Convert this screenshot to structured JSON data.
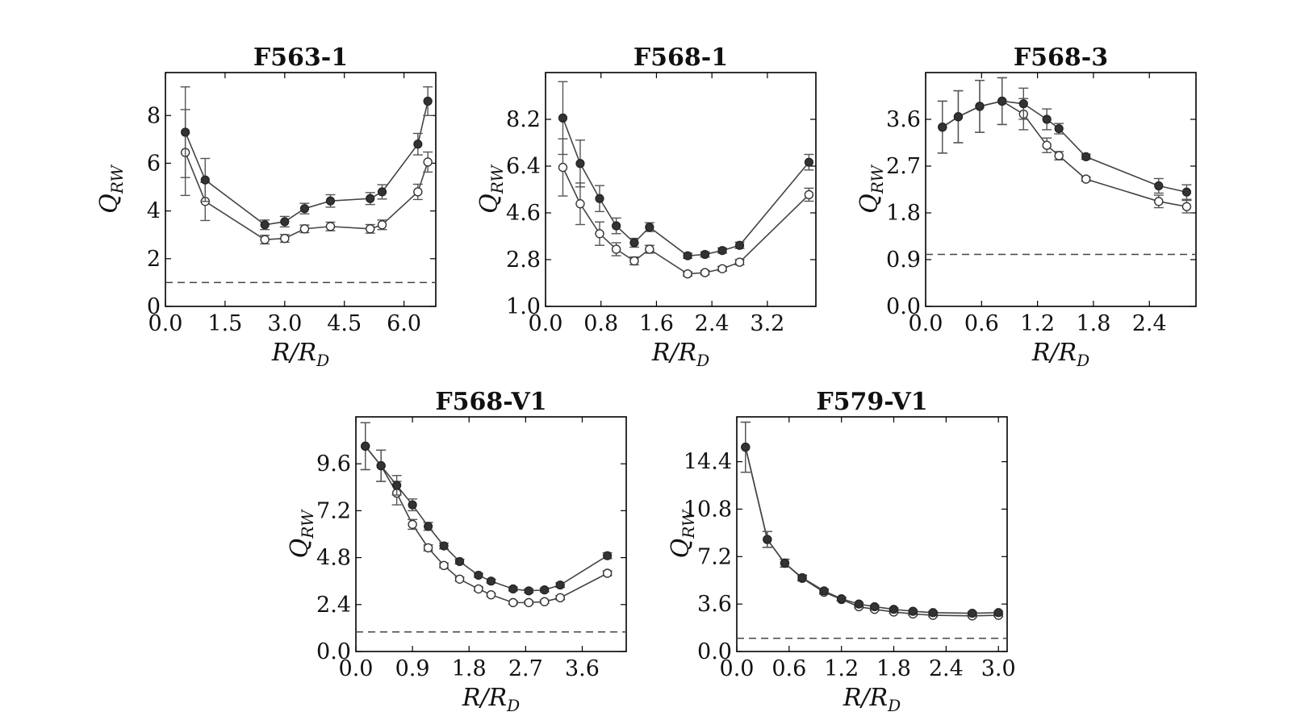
{
  "chart_data": [
    {
      "type": "scatter",
      "title": "F563-1",
      "xlabel": "R/R_D",
      "ylabel": "Q_RW",
      "xlim": [
        0,
        6.8
      ],
      "ylim": [
        0,
        9.8
      ],
      "xticks": [
        "0.0",
        "1.5",
        "3.0",
        "4.5",
        "6.0"
      ],
      "yticks": [
        "0",
        "2",
        "4",
        "6",
        "8"
      ],
      "ref_y": 1.0,
      "series": [
        {
          "name": "filled",
          "style": "filled",
          "x": [
            0.5,
            1.0,
            2.5,
            3.0,
            3.5,
            4.15,
            5.15,
            5.45,
            6.35,
            6.6
          ],
          "y": [
            7.3,
            5.3,
            3.42,
            3.55,
            4.1,
            4.42,
            4.52,
            4.8,
            6.8,
            8.6
          ],
          "err": [
            1.9,
            0.9,
            0.2,
            0.22,
            0.22,
            0.26,
            0.25,
            0.3,
            0.45,
            0.6
          ]
        },
        {
          "name": "open",
          "style": "open",
          "x": [
            0.5,
            1.0,
            2.5,
            3.0,
            3.5,
            4.15,
            5.15,
            5.45,
            6.35,
            6.6
          ],
          "y": [
            6.45,
            4.4,
            2.8,
            2.85,
            3.25,
            3.35,
            3.25,
            3.42,
            4.8,
            6.05
          ],
          "err": [
            1.8,
            0.8,
            0.18,
            0.16,
            0.16,
            0.18,
            0.18,
            0.2,
            0.32,
            0.42
          ]
        }
      ]
    },
    {
      "type": "scatter",
      "title": "F568-1",
      "xlabel": "R/R_D",
      "ylabel": "Q_RW",
      "xlim": [
        0,
        3.9
      ],
      "ylim": [
        1.0,
        10.0
      ],
      "xticks": [
        "0.0",
        "0.8",
        "1.6",
        "2.4",
        "3.2"
      ],
      "yticks": [
        "1.0",
        "2.8",
        "4.6",
        "6.4",
        "8.2"
      ],
      "ref_y": null,
      "series": [
        {
          "name": "filled",
          "style": "filled",
          "x": [
            0.25,
            0.5,
            0.78,
            1.02,
            1.28,
            1.5,
            2.05,
            2.3,
            2.55,
            2.8,
            3.8
          ],
          "y": [
            8.25,
            6.5,
            5.15,
            4.1,
            3.45,
            4.05,
            2.95,
            3.0,
            3.15,
            3.35,
            6.55
          ],
          "err": [
            1.4,
            0.9,
            0.5,
            0.3,
            0.17,
            0.17,
            0.1,
            0.1,
            0.1,
            0.12,
            0.3
          ]
        },
        {
          "name": "open",
          "style": "open",
          "x": [
            0.25,
            0.5,
            0.78,
            1.02,
            1.28,
            1.5,
            2.05,
            2.3,
            2.55,
            2.8,
            3.8
          ],
          "y": [
            6.35,
            4.95,
            3.8,
            3.2,
            2.75,
            3.2,
            2.25,
            2.3,
            2.45,
            2.7,
            5.3
          ],
          "err": [
            1.1,
            0.8,
            0.45,
            0.25,
            0.15,
            0.15,
            0.08,
            0.08,
            0.09,
            0.1,
            0.25
          ]
        }
      ]
    },
    {
      "type": "scatter",
      "title": "F568-3",
      "xlabel": "R/R_D",
      "ylabel": "Q_RW",
      "xlim": [
        0,
        2.9
      ],
      "ylim": [
        0,
        4.5
      ],
      "xticks": [
        "0.0",
        "0.6",
        "1.2",
        "1.8",
        "2.4"
      ],
      "yticks": [
        "0.0",
        "0.9",
        "1.8",
        "2.7",
        "3.6"
      ],
      "ref_y": 1.0,
      "series": [
        {
          "name": "filled",
          "style": "filled",
          "x": [
            0.18,
            0.35,
            0.58,
            0.82,
            1.05,
            1.3,
            1.43,
            1.72,
            2.5,
            2.8
          ],
          "y": [
            3.45,
            3.65,
            3.85,
            3.95,
            3.9,
            3.6,
            3.42,
            2.88,
            2.32,
            2.2
          ],
          "err": [
            0.5,
            0.5,
            0.5,
            0.45,
            0.3,
            0.2,
            0.1,
            0.05,
            0.14,
            0.14
          ]
        },
        {
          "name": "open",
          "style": "open",
          "x": [
            0.18,
            0.35,
            0.58,
            0.82,
            1.05,
            1.3,
            1.43,
            1.72,
            2.5,
            2.8
          ],
          "y": [
            3.45,
            3.65,
            3.85,
            3.95,
            3.7,
            3.1,
            2.9,
            2.45,
            2.02,
            1.92
          ],
          "err": [
            0.5,
            0.5,
            0.5,
            0.45,
            0.3,
            0.14,
            0.08,
            0.04,
            0.12,
            0.12
          ]
        }
      ]
    },
    {
      "type": "scatter",
      "title": "F568-V1",
      "xlabel": "R/R_D",
      "ylabel": "Q_RW",
      "xlim": [
        0,
        4.3
      ],
      "ylim": [
        0,
        12.0
      ],
      "xticks": [
        "0.0",
        "0.9",
        "1.8",
        "2.7",
        "3.6"
      ],
      "yticks": [
        "0.0",
        "2.4",
        "4.8",
        "7.2",
        "9.6"
      ],
      "ref_y": 1.0,
      "series": [
        {
          "name": "filled",
          "style": "filled",
          "x": [
            0.15,
            0.4,
            0.65,
            0.9,
            1.15,
            1.4,
            1.65,
            1.95,
            2.15,
            2.5,
            2.75,
            3.0,
            3.25,
            4.0
          ],
          "y": [
            10.5,
            9.5,
            8.5,
            7.5,
            6.4,
            5.4,
            4.6,
            3.9,
            3.6,
            3.2,
            3.1,
            3.15,
            3.4,
            4.9
          ],
          "err": [
            1.2,
            0.8,
            0.5,
            0.3,
            0.2,
            0.15,
            0.12,
            0.1,
            0.1,
            0.1,
            0.1,
            0.1,
            0.12,
            0.15
          ]
        },
        {
          "name": "open",
          "style": "open",
          "x": [
            0.15,
            0.4,
            0.65,
            0.9,
            1.15,
            1.4,
            1.65,
            1.95,
            2.15,
            2.5,
            2.75,
            3.0,
            3.25,
            4.0
          ],
          "y": [
            10.5,
            9.5,
            8.1,
            6.5,
            5.3,
            4.4,
            3.7,
            3.2,
            2.9,
            2.5,
            2.5,
            2.55,
            2.75,
            4.0
          ],
          "err": [
            1.2,
            0.8,
            0.6,
            0.25,
            0.15,
            0.12,
            0.1,
            0.1,
            0.08,
            0.08,
            0.08,
            0.08,
            0.1,
            0.12
          ]
        }
      ]
    },
    {
      "type": "scatter",
      "title": "F579-V1",
      "xlabel": "R/R_D",
      "ylabel": "Q_RW",
      "xlim": [
        0,
        3.1
      ],
      "ylim": [
        0,
        17.8
      ],
      "xticks": [
        "0.0",
        "0.6",
        "1.2",
        "1.8",
        "2.4",
        "3.0"
      ],
      "yticks": [
        "0.0",
        "3.6",
        "7.2",
        "10.8",
        "14.4"
      ],
      "ref_y": 1.0,
      "series": [
        {
          "name": "filled",
          "style": "filled",
          "x": [
            0.1,
            0.35,
            0.55,
            0.75,
            1.0,
            1.2,
            1.4,
            1.58,
            1.8,
            2.02,
            2.25,
            2.7,
            3.0
          ],
          "y": [
            15.5,
            8.5,
            6.7,
            5.6,
            4.6,
            4.0,
            3.6,
            3.4,
            3.2,
            3.05,
            2.95,
            2.9,
            2.95
          ],
          "err": [
            1.9,
            0.6,
            0.3,
            0.2,
            0.15,
            0.12,
            0.1,
            0.1,
            0.1,
            0.1,
            0.1,
            0.1,
            0.1
          ]
        },
        {
          "name": "open",
          "style": "open",
          "x": [
            0.1,
            0.35,
            0.55,
            0.75,
            1.0,
            1.2,
            1.4,
            1.58,
            1.8,
            2.02,
            2.25,
            2.7,
            3.0
          ],
          "y": [
            15.5,
            8.5,
            6.7,
            5.55,
            4.5,
            3.95,
            3.4,
            3.2,
            3.0,
            2.85,
            2.75,
            2.7,
            2.75
          ],
          "err": [
            1.9,
            0.6,
            0.3,
            0.2,
            0.15,
            0.12,
            0.1,
            0.1,
            0.1,
            0.1,
            0.1,
            0.1,
            0.1
          ]
        }
      ]
    }
  ]
}
